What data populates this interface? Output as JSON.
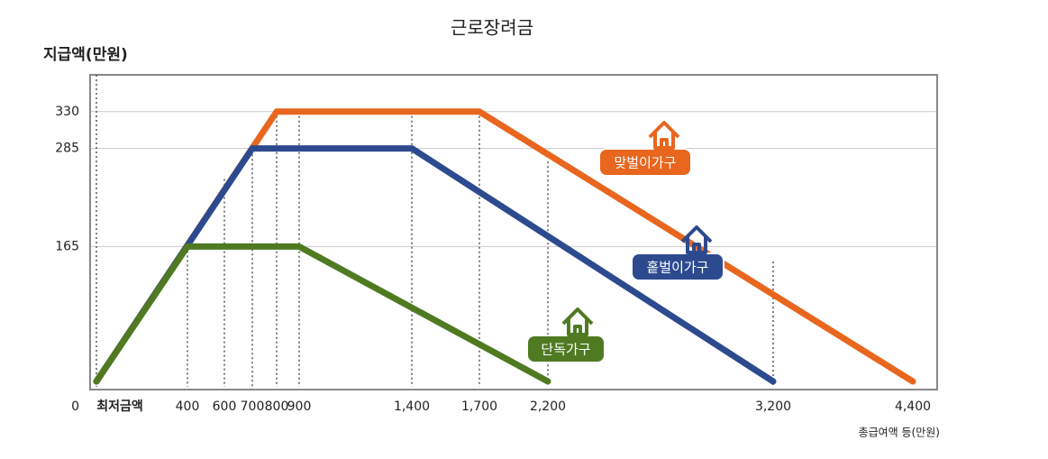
{
  "chart_data": {
    "type": "line",
    "title": "근로장려금",
    "y_label": "지급액(만원)",
    "x_label": "총급여액 등(만원)",
    "xlim": [
      0,
      4400
    ],
    "xticks": [
      {
        "value": 0,
        "label": "최저금액"
      },
      400,
      600,
      700,
      800,
      900,
      {
        "value": 1400,
        "label": "1,400"
      },
      {
        "value": 1700,
        "label": "1,700"
      },
      {
        "value": 2200,
        "label": "2,200"
      },
      {
        "value": 3200,
        "label": "3,200"
      },
      {
        "value": 4400,
        "label": "4,400"
      }
    ],
    "ylim": [
      0,
      375
    ],
    "yticks": [
      0,
      165,
      285,
      330
    ],
    "grid": true,
    "series": [
      {
        "name": "맞벌이가구",
        "color": "#e8661e",
        "x": [
          0,
          800,
          1700,
          4400
        ],
        "values": [
          0,
          330,
          330,
          0
        ]
      },
      {
        "name": "홑벌이가구",
        "color": "#2e4a8f",
        "x": [
          0,
          700,
          1400,
          3200
        ],
        "values": [
          0,
          285,
          285,
          0
        ]
      },
      {
        "name": "단독가구",
        "color": "#4f7a22",
        "x": [
          0,
          400,
          900,
          2200
        ],
        "values": [
          0,
          165,
          165,
          0
        ]
      }
    ]
  }
}
